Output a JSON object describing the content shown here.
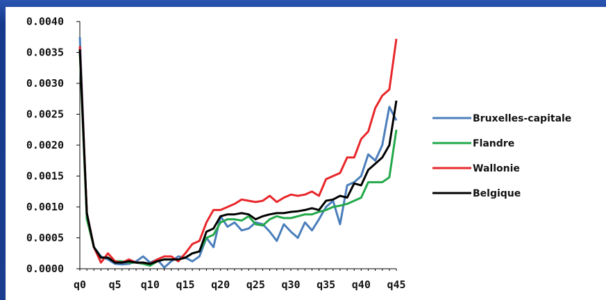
{
  "colors": {
    "background": "#1a3d8f",
    "panel": "#ffffff",
    "axis": "#000000"
  },
  "chart_data": {
    "type": "line",
    "title": "",
    "xlabel": "",
    "ylabel": "",
    "grid": false,
    "legend_position": "right",
    "x": [
      "q0",
      "q1",
      "q2",
      "q3",
      "q4",
      "q5",
      "q6",
      "q7",
      "q8",
      "q9",
      "q10",
      "q11",
      "q12",
      "q13",
      "q14",
      "q15",
      "q16",
      "q17",
      "q18",
      "q19",
      "q20",
      "q21",
      "q22",
      "q23",
      "q24",
      "q25",
      "q26",
      "q27",
      "q28",
      "q29",
      "q30",
      "q31",
      "q32",
      "q33",
      "q34",
      "q35",
      "q36",
      "q37",
      "q38",
      "q39",
      "q40",
      "q41",
      "q42",
      "q43",
      "q44",
      "q45"
    ],
    "x_tick_labels": [
      "q0",
      "q5",
      "q10",
      "q15",
      "q20",
      "q25",
      "q30",
      "q35",
      "q40",
      "q45"
    ],
    "y_tick_labels": [
      "0.0000",
      "0.0005",
      "0.0010",
      "0.0015",
      "0.0020",
      "0.0025",
      "0.0030",
      "0.0035",
      "0.0040"
    ],
    "ylim": [
      0,
      0.004
    ],
    "series": [
      {
        "name": "Bruxelles-capitale",
        "color": "#4a7ebb",
        "values": [
          0.00375,
          0.00085,
          0.00035,
          0.0002,
          0.00015,
          8e-05,
          7e-05,
          8e-05,
          0.00012,
          0.0002,
          0.0001,
          0.00015,
          2e-05,
          0.00012,
          0.0002,
          0.00018,
          0.00012,
          0.0002,
          0.0005,
          0.00035,
          0.00085,
          0.00068,
          0.00075,
          0.00062,
          0.00065,
          0.00075,
          0.00072,
          0.0006,
          0.00045,
          0.00072,
          0.0006,
          0.0005,
          0.00075,
          0.00062,
          0.0008,
          0.001,
          0.0011,
          0.00072,
          0.00135,
          0.0014,
          0.0015,
          0.00185,
          0.00175,
          0.002,
          0.00262,
          0.0024
        ]
      },
      {
        "name": "Flandre",
        "color": "#22a84a",
        "values": [
          0.0035,
          0.0008,
          0.00035,
          0.00018,
          0.00018,
          0.00012,
          0.00012,
          0.0001,
          0.0001,
          8e-05,
          5e-05,
          0.00012,
          0.00015,
          0.00015,
          0.00015,
          0.00018,
          0.00025,
          0.00028,
          0.0005,
          0.00055,
          0.00075,
          0.0008,
          0.0008,
          0.00078,
          0.00085,
          0.00072,
          0.0007,
          0.0008,
          0.00085,
          0.00082,
          0.00082,
          0.00085,
          0.00088,
          0.00088,
          0.00092,
          0.00095,
          0.001,
          0.00102,
          0.00105,
          0.0011,
          0.00115,
          0.0014,
          0.0014,
          0.0014,
          0.00148,
          0.00225
        ]
      },
      {
        "name": "Wallonie",
        "color": "#e8262a",
        "values": [
          0.0036,
          0.0009,
          0.00035,
          0.0001,
          0.00025,
          0.00012,
          0.0001,
          0.00015,
          0.0001,
          0.0001,
          8e-05,
          0.00015,
          0.0002,
          0.0002,
          0.00012,
          0.00025,
          0.0004,
          0.00045,
          0.00075,
          0.00095,
          0.00095,
          0.001,
          0.00105,
          0.00112,
          0.0011,
          0.00108,
          0.0011,
          0.00118,
          0.00108,
          0.00115,
          0.0012,
          0.00118,
          0.0012,
          0.00125,
          0.00118,
          0.00145,
          0.0015,
          0.00155,
          0.0018,
          0.0018,
          0.0021,
          0.00222,
          0.0026,
          0.0028,
          0.0029,
          0.00372
        ]
      },
      {
        "name": "Belgique",
        "color": "#000000",
        "values": [
          0.00355,
          0.0009,
          0.00035,
          0.00018,
          0.00018,
          0.0001,
          0.0001,
          0.00012,
          0.0001,
          0.0001,
          8e-05,
          0.00012,
          0.00015,
          0.00015,
          0.00015,
          0.00018,
          0.00025,
          0.00028,
          0.0006,
          0.00065,
          0.00085,
          0.00088,
          0.00088,
          0.0009,
          0.00088,
          0.0008,
          0.00085,
          0.00088,
          0.0009,
          0.0009,
          0.00092,
          0.00093,
          0.00095,
          0.00098,
          0.00095,
          0.0011,
          0.00112,
          0.00118,
          0.00115,
          0.00138,
          0.00135,
          0.0016,
          0.0017,
          0.0018,
          0.002,
          0.00272
        ]
      }
    ]
  }
}
